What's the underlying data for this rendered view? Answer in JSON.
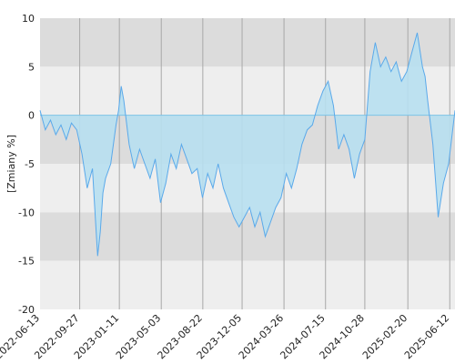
{
  "chart_data": {
    "type": "area",
    "title": "",
    "xlabel": "",
    "ylabel": "[Zmiany %]",
    "x_range": [
      "2022-06-13",
      "2025-06-26"
    ],
    "ylim": [
      -20,
      10
    ],
    "y_ticks": [
      "10",
      "5",
      "0",
      "-5",
      "-10",
      "-15",
      "-20"
    ],
    "x_ticks": [
      "2022-06-13",
      "2022-09-27",
      "2023-01-11",
      "2023-05-03",
      "2023-08-22",
      "2023-12-05",
      "2024-03-26",
      "2024-07-15",
      "2024-10-28",
      "2025-02-20",
      "2025-06-12"
    ],
    "grid": true,
    "band_colors": [
      "#dcdcdc",
      "#eeeeee"
    ],
    "line_color": "#5aa9ea",
    "fill_color": "#b7dff0",
    "series": [
      {
        "x": [
          "2022-06-13",
          "2022-06-27",
          "2022-07-11",
          "2022-07-25",
          "2022-08-08",
          "2022-08-22",
          "2022-09-05",
          "2022-09-19",
          "2022-10-03",
          "2022-10-17",
          "2022-10-31",
          "2022-11-07",
          "2022-11-14",
          "2022-11-21",
          "2022-11-28",
          "2022-12-05",
          "2022-12-19",
          "2023-01-02",
          "2023-01-09",
          "2023-01-16",
          "2023-01-23",
          "2023-02-06",
          "2023-02-20",
          "2023-03-06",
          "2023-03-20",
          "2023-04-03",
          "2023-04-17",
          "2023-05-01",
          "2023-05-15",
          "2023-05-29",
          "2023-06-12",
          "2023-06-26",
          "2023-07-10",
          "2023-07-24",
          "2023-08-07",
          "2023-08-21",
          "2023-09-04",
          "2023-09-18",
          "2023-10-02",
          "2023-10-16",
          "2023-10-30",
          "2023-11-13",
          "2023-11-27",
          "2023-12-11",
          "2023-12-25",
          "2024-01-08",
          "2024-01-22",
          "2024-02-05",
          "2024-02-19",
          "2024-03-04",
          "2024-03-18",
          "2024-04-01",
          "2024-04-15",
          "2024-04-29",
          "2024-05-13",
          "2024-05-27",
          "2024-06-10",
          "2024-06-24",
          "2024-07-08",
          "2024-07-22",
          "2024-08-05",
          "2024-08-19",
          "2024-09-02",
          "2024-09-16",
          "2024-09-30",
          "2024-10-14",
          "2024-10-28",
          "2024-11-11",
          "2024-11-25",
          "2024-12-09",
          "2024-12-23",
          "2025-01-06",
          "2025-01-20",
          "2025-02-03",
          "2025-02-17",
          "2025-03-03",
          "2025-03-17",
          "2025-03-31",
          "2025-04-07",
          "2025-04-14",
          "2025-04-28",
          "2025-05-12",
          "2025-05-26",
          "2025-06-09",
          "2025-06-26"
        ],
        "y": [
          0.5,
          -1.5,
          -0.5,
          -2.0,
          -1.0,
          -2.5,
          -0.8,
          -1.5,
          -4.0,
          -7.5,
          -5.5,
          -10.0,
          -14.5,
          -12.0,
          -8.0,
          -6.5,
          -5.0,
          -1.0,
          0.5,
          3.0,
          1.5,
          -3.0,
          -5.5,
          -3.5,
          -5.0,
          -6.5,
          -4.5,
          -9.0,
          -7.0,
          -4.0,
          -5.5,
          -3.0,
          -4.5,
          -6.0,
          -5.5,
          -8.5,
          -6.0,
          -7.5,
          -5.0,
          -7.5,
          -9.0,
          -10.5,
          -11.5,
          -10.5,
          -9.5,
          -11.5,
          -10.0,
          -12.5,
          -11.0,
          -9.5,
          -8.5,
          -6.0,
          -7.5,
          -5.5,
          -3.0,
          -1.5,
          -1.0,
          1.0,
          2.5,
          3.5,
          1.0,
          -3.5,
          -2.0,
          -3.5,
          -6.5,
          -4.0,
          -2.5,
          4.5,
          7.5,
          5.0,
          6.0,
          4.5,
          5.5,
          3.5,
          4.5,
          6.5,
          8.5,
          5.0,
          4.0,
          1.5,
          -3.0,
          -10.5,
          -7.0,
          -5.0,
          0.5
        ]
      }
    ]
  }
}
